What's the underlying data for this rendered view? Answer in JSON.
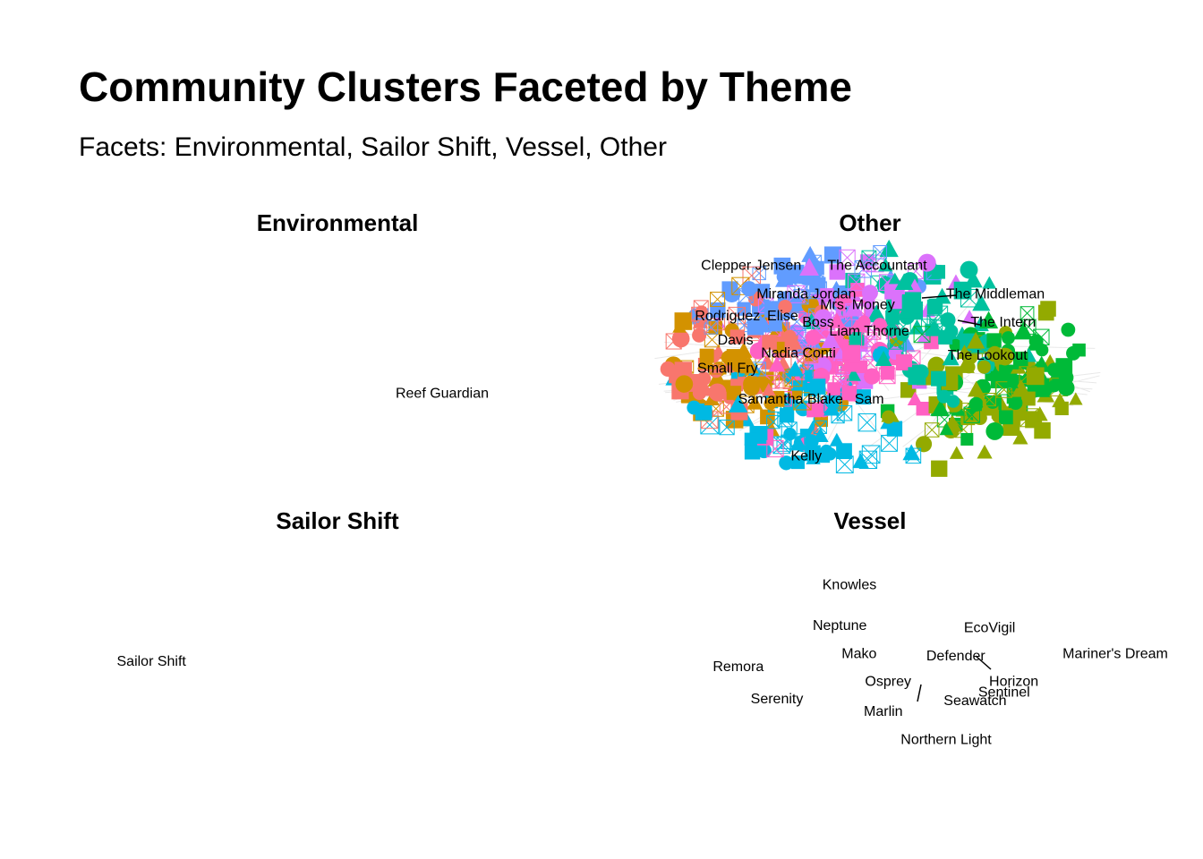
{
  "title": "Community Clusters Faceted by Theme",
  "subtitle": "Facets: Environmental, Sailor Shift, Vessel, Other",
  "colors": {
    "palette": [
      "#F8766D",
      "#D39200",
      "#93AA00",
      "#00BA38",
      "#00C19F",
      "#00B9E3",
      "#619CFF",
      "#DB72FB",
      "#FF61C3"
    ],
    "background": "#ffffff",
    "edge": "#e8e8e8",
    "text": "#000000"
  },
  "chart_data": {
    "type": "scatter",
    "layout": "network facets (2 x 2)",
    "x_range": [
      0,
      1
    ],
    "y_range": [
      0,
      1
    ],
    "marker_shapes": [
      "circle",
      "square",
      "triangle",
      "boxed-x"
    ],
    "facets": [
      {
        "name": "Environmental",
        "nodes": [
          {
            "label": "Reef Guardian",
            "x": 0.7,
            "y": 0.37
          }
        ]
      },
      {
        "name": "Other",
        "labels": [
          {
            "label": "Clepper Jensen",
            "x": 0.18,
            "y": 0.95
          },
          {
            "label": "The Accountant",
            "x": 0.5,
            "y": 0.95
          },
          {
            "label": "Miranda Jordan",
            "x": 0.32,
            "y": 0.82
          },
          {
            "label": "The Middleman",
            "x": 0.8,
            "y": 0.82
          },
          {
            "label": "Mrs. Money",
            "x": 0.45,
            "y": 0.77
          },
          {
            "label": "Rodriguez",
            "x": 0.12,
            "y": 0.72
          },
          {
            "label": "Elise",
            "x": 0.26,
            "y": 0.72
          },
          {
            "label": "Boss",
            "x": 0.35,
            "y": 0.69
          },
          {
            "label": "The Intern",
            "x": 0.82,
            "y": 0.69
          },
          {
            "label": "Liam Thorne",
            "x": 0.48,
            "y": 0.65
          },
          {
            "label": "Davis",
            "x": 0.14,
            "y": 0.61
          },
          {
            "label": "Nadia Conti",
            "x": 0.3,
            "y": 0.55
          },
          {
            "label": "The Lookout",
            "x": 0.78,
            "y": 0.54
          },
          {
            "label": "Small Fry",
            "x": 0.12,
            "y": 0.48
          },
          {
            "label": "Samantha Blake",
            "x": 0.28,
            "y": 0.34
          },
          {
            "label": "Sam",
            "x": 0.48,
            "y": 0.34
          },
          {
            "label": "Kelly",
            "x": 0.32,
            "y": 0.08
          }
        ]
      },
      {
        "name": "Sailor Shift",
        "nodes": [
          {
            "label": "Sailor Shift",
            "x": 0.14,
            "y": 0.5
          }
        ]
      },
      {
        "name": "Vessel",
        "nodes": [
          {
            "label": "Knowles",
            "x": 0.35,
            "y": 0.94
          },
          {
            "label": "Neptune",
            "x": 0.33,
            "y": 0.75
          },
          {
            "label": "EcoVigil",
            "x": 0.64,
            "y": 0.74
          },
          {
            "label": "Mako",
            "x": 0.37,
            "y": 0.62
          },
          {
            "label": "Defender",
            "x": 0.57,
            "y": 0.61
          },
          {
            "label": "Mariner's Dream",
            "x": 0.9,
            "y": 0.62
          },
          {
            "label": "Remora",
            "x": 0.12,
            "y": 0.56
          },
          {
            "label": "Osprey",
            "x": 0.43,
            "y": 0.49
          },
          {
            "label": "Horizon",
            "x": 0.69,
            "y": 0.49
          },
          {
            "label": "Sentinel",
            "x": 0.67,
            "y": 0.44
          },
          {
            "label": "Seawatch",
            "x": 0.61,
            "y": 0.4
          },
          {
            "label": "Serenity",
            "x": 0.2,
            "y": 0.41
          },
          {
            "label": "Marlin",
            "x": 0.42,
            "y": 0.35
          },
          {
            "label": "Northern Light",
            "x": 0.55,
            "y": 0.22
          }
        ]
      }
    ]
  }
}
